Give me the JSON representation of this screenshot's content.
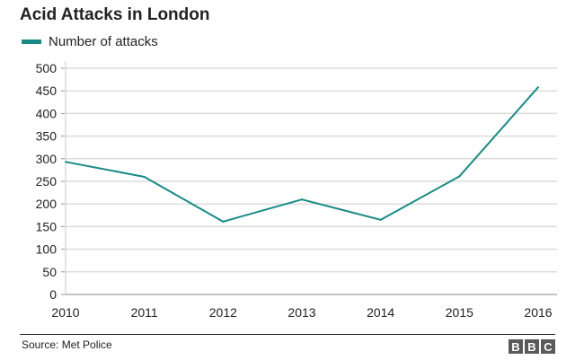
{
  "chart_data": {
    "type": "line",
    "title": "Acid Attacks in London",
    "categories": [
      "2010",
      "2011",
      "2012",
      "2013",
      "2014",
      "2015",
      "2016"
    ],
    "series": [
      {
        "name": "Number of attacks",
        "color": "#1a8a84",
        "values": [
          293,
          260,
          161,
          210,
          165,
          261,
          458
        ]
      }
    ],
    "yticks": [
      0,
      50,
      100,
      150,
      200,
      250,
      300,
      350,
      400,
      450,
      500
    ],
    "ylim": [
      0,
      500
    ],
    "xlabel": "",
    "ylabel": "",
    "grid": true,
    "legend": "top-left"
  },
  "footer": {
    "source": "Source: Met Police",
    "logo": [
      "B",
      "B",
      "C"
    ]
  }
}
